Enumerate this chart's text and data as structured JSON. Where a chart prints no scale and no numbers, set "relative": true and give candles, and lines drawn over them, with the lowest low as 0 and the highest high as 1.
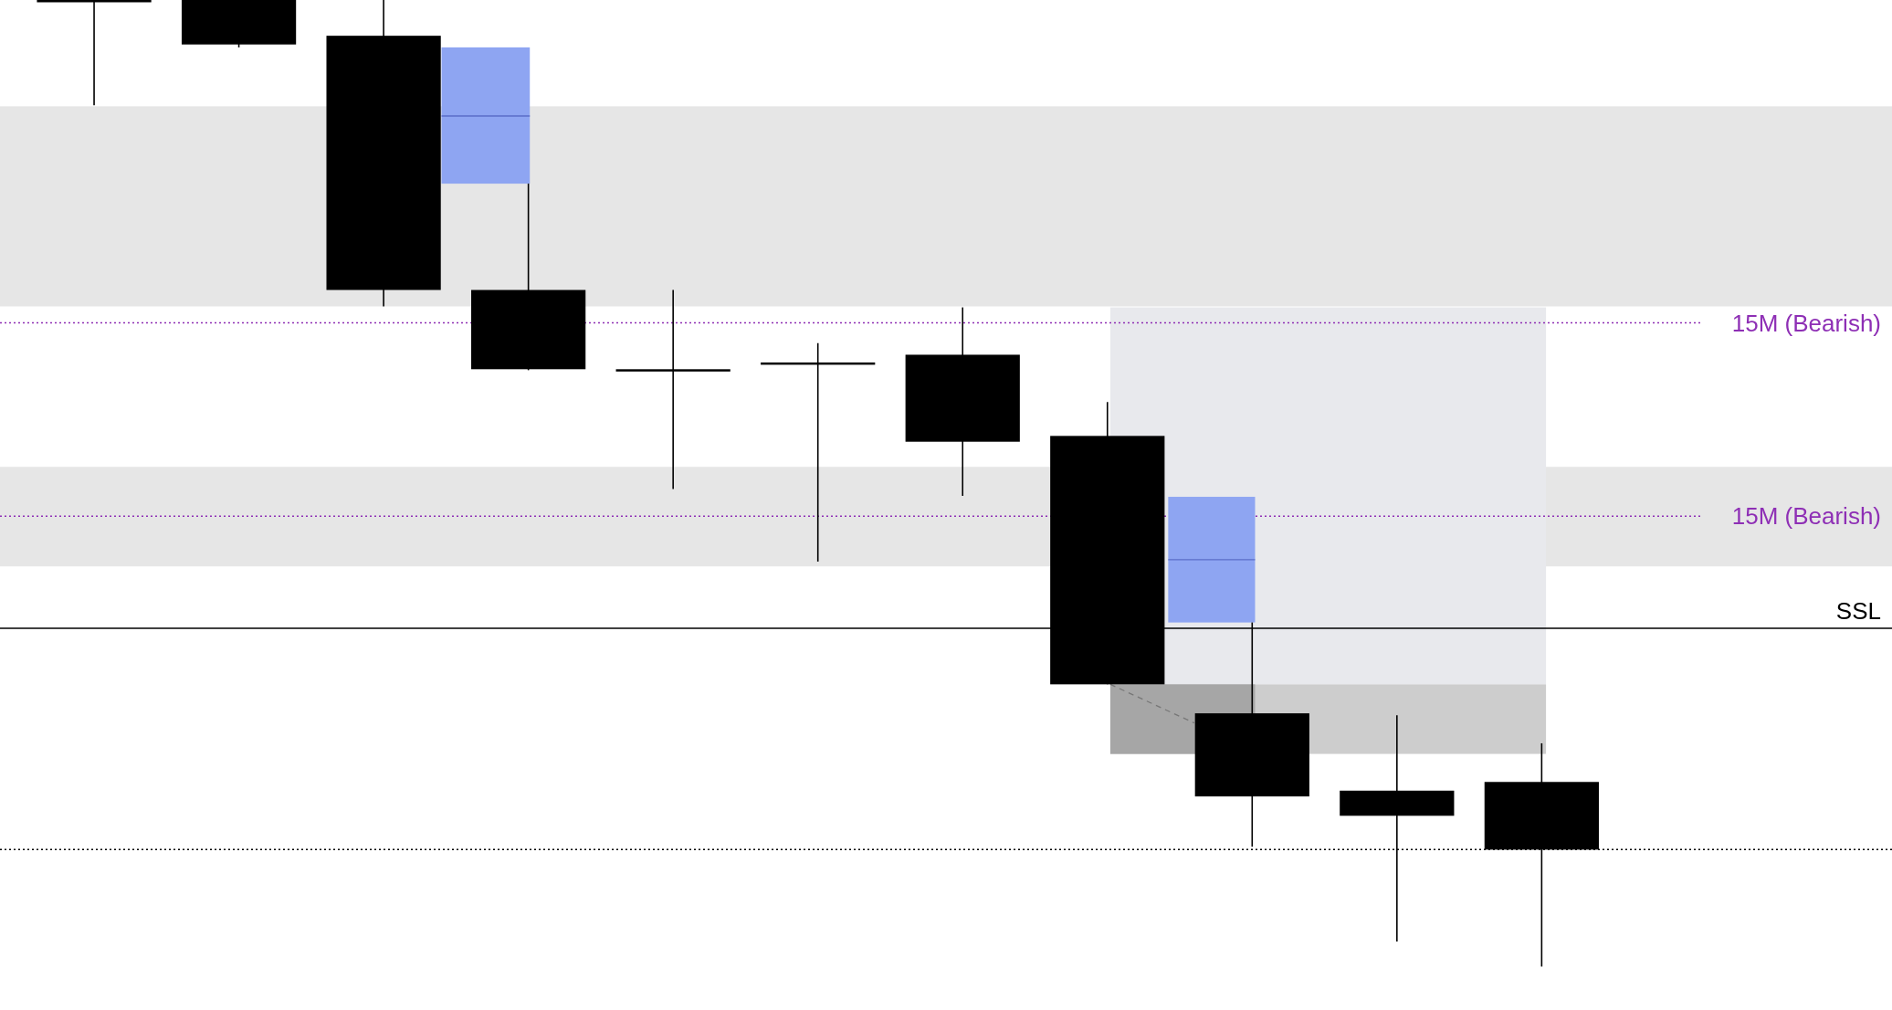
{
  "chart_data": {
    "type": "candlestick",
    "relative": true,
    "categories": [
      null,
      null,
      null,
      null,
      null,
      null,
      null,
      null,
      null,
      null,
      null
    ],
    "ohlc": [
      [
        1,
        1,
        0.891,
        1
      ],
      [
        1,
        1,
        0.951,
        0.954
      ],
      [
        0.963,
        1,
        0.683,
        0.7
      ],
      [
        0.7,
        0.81,
        0.617,
        0.618
      ],
      [
        0.618,
        0.7,
        0.494,
        0.618
      ],
      [
        0.625,
        0.645,
        0.419,
        0.625
      ],
      [
        0.633,
        0.682,
        0.487,
        0.543
      ],
      [
        0.549,
        0.584,
        0.292,
        0.292
      ],
      [
        0.262,
        0.356,
        0.124,
        0.176
      ],
      [
        0.182,
        0.26,
        0.026,
        0.156
      ],
      [
        0.191,
        0.231,
        0,
        0.121
      ]
    ],
    "bands": [
      {
        "axis": "y",
        "from": 0.683,
        "to": 0.89,
        "color": "#e6e6e6"
      },
      {
        "axis": "y",
        "from": 0.414,
        "to": 0.517,
        "color": "#e6e6e6"
      }
    ],
    "ref_lines": [
      {
        "axis": "y",
        "value": 0.666,
        "label": "15M (Bearish)",
        "color": "#8e2fb5",
        "line_style": "dotted"
      },
      {
        "axis": "y",
        "value": 0.466,
        "label": "15M (Bearish)",
        "color": "#8e2fb5",
        "line_style": "dotted"
      },
      {
        "axis": "y",
        "value": 0.35,
        "label": "SSL",
        "color": "#000000",
        "line_style": "solid"
      },
      {
        "axis": "y",
        "value": 0.121,
        "color": "#000000",
        "line_style": "dotted"
      }
    ]
  }
}
